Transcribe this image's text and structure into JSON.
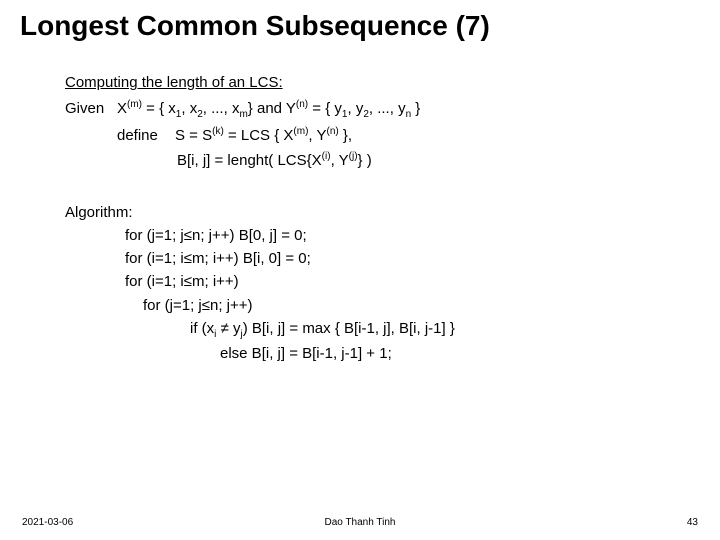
{
  "title": "Longest Common Subsequence (7)",
  "s1": {
    "head": "Computing the length of an LCS:",
    "given_label": "Given",
    "x_pre": "X",
    "x_sup": "(m)",
    "x_set_a": " = { x",
    "x1s": "1",
    "x_set_b": ", x",
    "x2s": "2",
    "x_set_c": ", ..., x",
    "xms": "m",
    "x_set_d": "}  and Y",
    "y_sup": "(n)",
    "y_set_a": " = { y",
    "y1s": "1",
    "y_set_b": ", y",
    "y2s": "2",
    "y_set_c": ", ..., y",
    "yns": "n",
    "y_set_d": " }",
    "define_label": "define",
    "s_text_a": "S = S",
    "s_sup": "(k)",
    "s_text_b": " = LCS { X",
    "s_x_sup": "(m)",
    "s_text_c": ", Y",
    "s_y_sup": "(n)",
    "s_text_d": " },",
    "b_text_a": "B[i, j] = lenght( LCS{X",
    "b_i_sup": "(i)",
    "b_text_b": ", Y",
    "b_j_sup": "(j)",
    "b_text_c": "} )"
  },
  "algo": {
    "head": "Algorithm:",
    "l1": "for (j=1; j≤n; j++)  B[0, j]  =  0;",
    "l2": "for (i=1; i≤m; i++) B[i, 0]  =  0;",
    "l3": "for (i=1; i≤m; i++)",
    "l4": "for (j=1; j≤n; j++)",
    "l5a": "if (x",
    "l5_i": "i",
    "l5b": " ≠ y",
    "l5_j": "j",
    "l5c": ")  B[i, j]  =  max { B[i-1, j], B[i, j-1] }",
    "l6": "else    B[i, j]  =  B[i-1, j-1] + 1;"
  },
  "footer": {
    "date": "2021-03-06",
    "author": "Dao Thanh Tinh",
    "page": "43"
  }
}
